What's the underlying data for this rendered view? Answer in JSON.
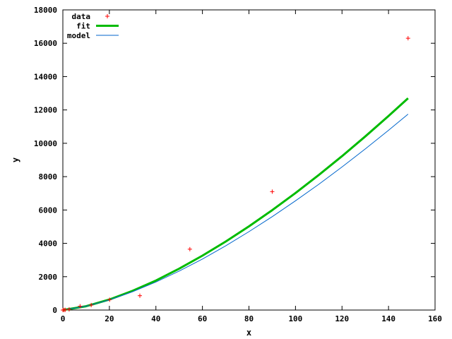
{
  "chart_data": {
    "type": "scatter",
    "title": "",
    "xlabel": "x",
    "ylabel": "y",
    "xlim": [
      0,
      160
    ],
    "ylim": [
      0,
      18000
    ],
    "xticks": [
      0,
      20,
      40,
      60,
      80,
      100,
      120,
      140,
      160
    ],
    "yticks": [
      0,
      2000,
      4000,
      6000,
      8000,
      10000,
      12000,
      14000,
      16000,
      18000
    ],
    "grid": false,
    "legend_position": "top-left",
    "series": [
      {
        "name": "data",
        "kind": "points",
        "marker": "+",
        "color": "#ff0000",
        "x": [
          0,
          0.5,
          1.0,
          2.7,
          7.4,
          12.2,
          20.1,
          33.1,
          54.6,
          90.0,
          148.4
        ],
        "y": [
          0,
          5,
          12,
          40,
          230,
          300,
          620,
          860,
          3650,
          7100,
          16300
        ]
      },
      {
        "name": "fit",
        "kind": "line",
        "color": "#00bb00",
        "x": [
          0,
          10,
          20,
          30,
          40,
          50,
          60,
          70,
          80,
          90,
          100,
          110,
          120,
          130,
          140,
          148.4
        ],
        "y": [
          0,
          230,
          630,
          1150,
          1770,
          2480,
          3260,
          4110,
          5020,
          5990,
          7020,
          8100,
          9230,
          10410,
          11640,
          12700
        ]
      },
      {
        "name": "model",
        "kind": "line",
        "color": "#0066cc",
        "x": [
          0,
          10,
          20,
          30,
          40,
          50,
          60,
          70,
          80,
          90,
          100,
          110,
          120,
          130,
          140,
          148.4
        ],
        "y": [
          0,
          230,
          610,
          1100,
          1680,
          2340,
          3060,
          3850,
          4700,
          5600,
          6550,
          7540,
          8580,
          9660,
          10780,
          11750
        ]
      }
    ]
  }
}
